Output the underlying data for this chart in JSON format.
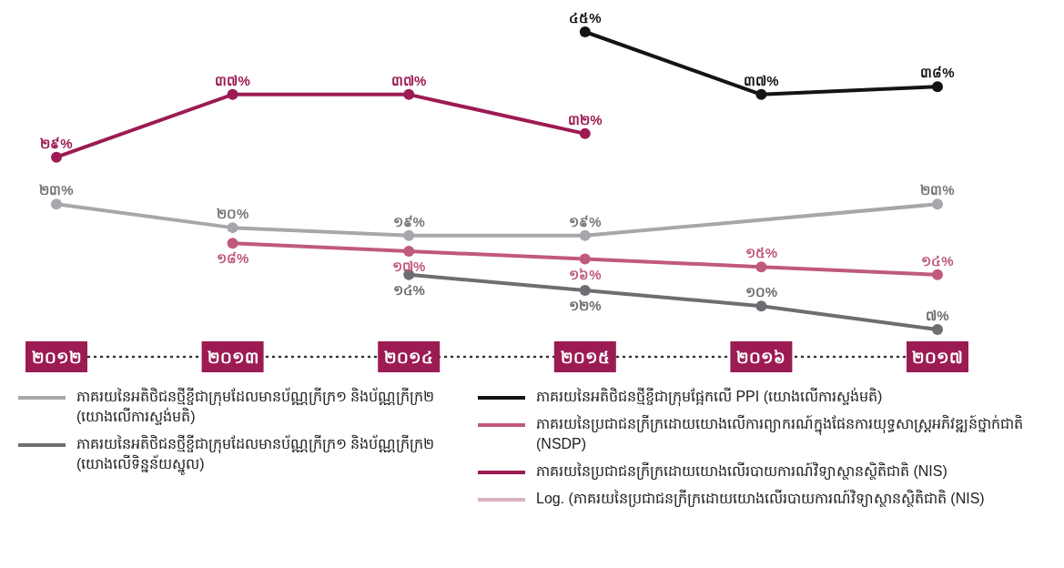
{
  "chart_data": {
    "type": "line",
    "categories": [
      "២០១២",
      "២០១៣",
      "២០១៤",
      "២០១៥",
      "២០១៦",
      "២០១៧"
    ],
    "marker": "circle",
    "data_labels": true,
    "legend": "bottom",
    "series": [
      {
        "name": "ភាគរយនៃអតិថិជនថ្មីខ្ចីជាក្រុមដែលមានប័ណ្ណក្រីក្រ១ និងប័ណ្ណក្រីក្រ២ (យោងលើការស្ទង់មតិ)",
        "color": "#a7a6ab",
        "values": [
          23,
          20,
          19,
          19,
          null,
          23
        ],
        "value_labels": [
          "២៣%",
          "២០%",
          "១៩%",
          "១៩%",
          null,
          "២៣%"
        ]
      },
      {
        "name": "ភាគរយនៃអតិថិជនថ្មីខ្ចីជាក្រុមដែលមានប័ណ្ណក្រីក្រ១ និងប័ណ្ណក្រីក្រ២ (យោងលើទិន្នន័យស្នូល)",
        "color": "#6e6d71",
        "values": [
          null,
          null,
          14,
          12,
          10,
          7
        ],
        "value_labels": [
          null,
          null,
          "១៤%",
          "១២%",
          "១០%",
          "៧%"
        ]
      },
      {
        "name": "ភាគរយនៃអតិថិជនថ្មីខ្ចីជាក្រុមផ្អែកលើ PPI (យោងលើការស្ទង់មតិ)",
        "color": "#141414",
        "values": [
          null,
          null,
          null,
          45,
          37,
          38
        ],
        "value_labels": [
          null,
          null,
          null,
          "៤៥%",
          "៣៧%",
          "៣៨%"
        ]
      },
      {
        "name": "ភាគរយនៃប្រជាជនក្រីក្រដោយយោងលើការព្យាករណ៍ក្នុងផែនការយុទ្ធសាស្ត្រអភិវឌ្ឍន៍ថ្នាក់ជាតិ (NSDP)",
        "color": "#c05a7d",
        "values": [
          null,
          18,
          17,
          16,
          15,
          14
        ],
        "value_labels": [
          null,
          "១៨%",
          "១៧%",
          "១៦%",
          "១៥%",
          "១៤%"
        ]
      },
      {
        "name": "ភាគរយនៃប្រជាជនក្រីក្រដោយយោងលើរបាយការណ៍វិទ្យាស្ថានស្ថិតិជាតិ (NIS)",
        "color": "#9c1b53",
        "values": [
          29,
          37,
          37,
          32,
          null,
          null
        ],
        "value_labels": [
          "២៩%",
          "៣៧%",
          "៣៧%",
          "៣២%",
          null,
          null
        ]
      },
      {
        "name": "Log. (ភាគរយនៃប្រជាជនក្រីក្រដោយយោងលើរបាយការណ៍វិទ្យាស្ថានស្ថិតិជាតិ (NIS)",
        "color": "#d9b1c0",
        "values": [
          null,
          null,
          null,
          null,
          null,
          null
        ]
      }
    ]
  }
}
